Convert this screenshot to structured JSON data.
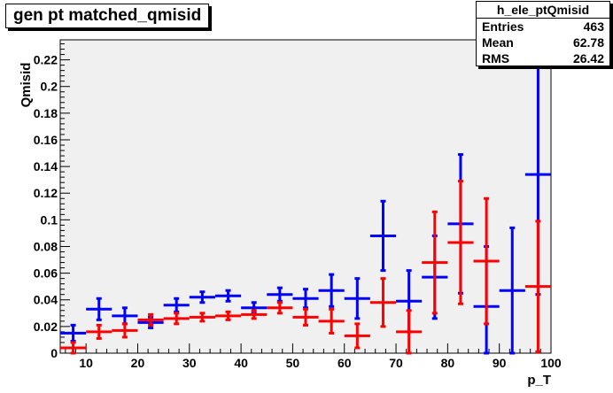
{
  "chart_data": {
    "type": "scatter",
    "title": "gen pt matched_qmisid",
    "xlabel": "p_T",
    "ylabel": "Qmisid",
    "xlim": [
      5,
      100
    ],
    "ylim": [
      0,
      0.235
    ],
    "x_ticks": [
      10,
      20,
      30,
      40,
      50,
      60,
      70,
      80,
      90,
      100
    ],
    "x_tick_labels": [
      "10",
      "20",
      "30",
      "40",
      "50",
      "60",
      "70",
      "80",
      "90",
      "100"
    ],
    "y_ticks": [
      0,
      0.02,
      0.04,
      0.06,
      0.08,
      0.1,
      0.12,
      0.14,
      0.16,
      0.18,
      0.2,
      0.22
    ],
    "y_tick_labels": [
      "0",
      "0.02",
      "0.04",
      "0.06",
      "0.08",
      "0.1",
      "0.12",
      "0.14",
      "0.16",
      "0.18",
      "0.2",
      "0.22"
    ],
    "grid": false,
    "bin_half_width": 2.5,
    "series": [
      {
        "color": "#0000ff",
        "x": [
          7.5,
          12.5,
          17.5,
          22.5,
          27.5,
          32.5,
          37.5,
          42.5,
          47.5,
          52.5,
          57.5,
          62.5,
          67.5,
          72.5,
          77.5,
          82.5,
          87.5,
          92.5,
          97.5
        ],
        "y": [
          0.015,
          0.033,
          0.028,
          0.023,
          0.036,
          0.042,
          0.043,
          0.034,
          0.044,
          0.041,
          0.047,
          0.041,
          0.088,
          0.039,
          0.057,
          0.097,
          0.035,
          0.047,
          0.134
        ],
        "y_err": [
          0.006,
          0.008,
          0.006,
          0.004,
          0.005,
          0.004,
          0.004,
          0.004,
          0.005,
          0.007,
          0.012,
          0.015,
          0.026,
          0.023,
          0.031,
          0.052,
          0.045,
          0.047,
          0.09
        ]
      },
      {
        "color": "#ff0000",
        "x": [
          7.5,
          12.5,
          17.5,
          22.5,
          27.5,
          32.5,
          37.5,
          42.5,
          47.5,
          52.5,
          57.5,
          62.5,
          67.5,
          72.5,
          77.5,
          82.5,
          87.5,
          92.5,
          97.5
        ],
        "y": [
          0.004,
          0.016,
          0.017,
          0.025,
          0.026,
          0.027,
          0.028,
          0.029,
          0.034,
          0.027,
          0.024,
          0.013,
          0.038,
          0.016,
          0.068,
          0.083,
          0.069,
          null,
          0.05
        ],
        "y_err": [
          0.004,
          0.005,
          0.005,
          0.004,
          0.004,
          0.003,
          0.003,
          0.003,
          0.004,
          0.006,
          0.009,
          0.009,
          0.018,
          0.016,
          0.038,
          0.046,
          0.047,
          null,
          0.049
        ]
      }
    ]
  },
  "stats": {
    "name": "h_ele_ptQmisid",
    "entries_label": "Entries",
    "entries_value": "463",
    "mean_label": "Mean",
    "mean_value": "62.78",
    "rms_label": "RMS",
    "rms_value": "26.42"
  },
  "colors": {
    "frame_bg": "#f0f0f0",
    "axis": "#000000"
  }
}
